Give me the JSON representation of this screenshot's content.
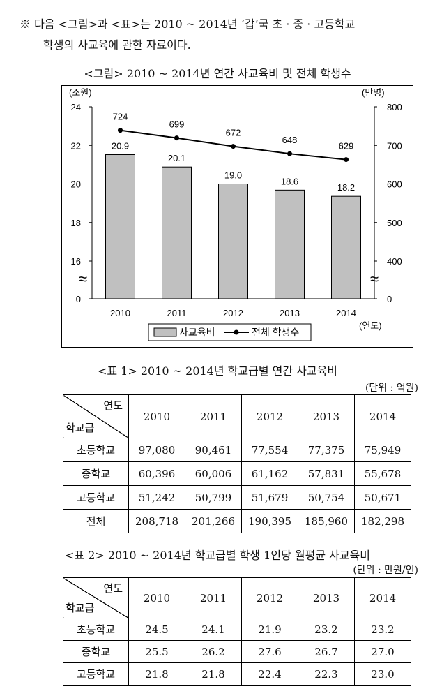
{
  "intro": {
    "line1": "※  다음  <그림>과  <표>는  2010 ~ 2014년  ‘갑’국  초 · 중 · 고등학교",
    "line2": "학생의 사교육에 관한 자료이다."
  },
  "figure": {
    "caption": "<그림> 2010 ~ 2014년 연간 사교육비 및 전체 학생수",
    "left_unit": "(조원)",
    "right_unit": "(만명)",
    "x_unit": "(연도)",
    "break_symbol": "≈",
    "legend": {
      "bar": "사교육비",
      "line": "전체 학생수"
    }
  },
  "chart_data": {
    "type": "bar",
    "categories": [
      "2010",
      "2011",
      "2012",
      "2013",
      "2014"
    ],
    "series": [
      {
        "name": "사교육비",
        "type": "bar",
        "axis": "left",
        "values": [
          20.9,
          20.1,
          19.0,
          18.6,
          18.2
        ]
      },
      {
        "name": "전체 학생수",
        "type": "line",
        "axis": "right",
        "values": [
          724,
          699,
          672,
          648,
          629
        ]
      }
    ],
    "left_axis": {
      "label": "(조원)",
      "ticks": [
        "24",
        "22",
        "20",
        "18",
        "16",
        "0"
      ],
      "ylim": [
        14,
        24
      ],
      "broken": true
    },
    "right_axis": {
      "label": "(만명)",
      "ticks": [
        "800",
        "700",
        "600",
        "500",
        "400",
        "0"
      ],
      "ylim": [
        300,
        800
      ],
      "broken": true
    },
    "xlabel": "(연도)",
    "grid": false,
    "legend_position": "bottom"
  },
  "table1": {
    "caption": "<표 1> 2010 ~ 2014년 학교급별 연간 사교육비",
    "unit": "(단위 : 억원)",
    "header_year": "연도",
    "header_level": "학교급",
    "columns": [
      "2010",
      "2011",
      "2012",
      "2013",
      "2014"
    ],
    "rows": [
      {
        "label": "초등학교",
        "values": [
          "97,080",
          "90,461",
          "77,554",
          "77,375",
          "75,949"
        ]
      },
      {
        "label": "중학교",
        "values": [
          "60,396",
          "60,006",
          "61,162",
          "57,831",
          "55,678"
        ]
      },
      {
        "label": "고등학교",
        "values": [
          "51,242",
          "50,799",
          "51,679",
          "50,754",
          "50,671"
        ]
      },
      {
        "label": "전체",
        "values": [
          "208,718",
          "201,266",
          "190,395",
          "185,960",
          "182,298"
        ]
      }
    ]
  },
  "table2": {
    "caption": "<표 2> 2010 ~ 2014년 학교급별 학생 1인당 월평균 사교육비",
    "unit": "(단위 : 만원/인)",
    "header_year": "연도",
    "header_level": "학교급",
    "columns": [
      "2010",
      "2011",
      "2012",
      "2013",
      "2014"
    ],
    "rows": [
      {
        "label": "초등학교",
        "values": [
          "24.5",
          "24.1",
          "21.9",
          "23.2",
          "23.2"
        ]
      },
      {
        "label": "중학교",
        "values": [
          "25.5",
          "26.2",
          "27.6",
          "26.7",
          "27.0"
        ]
      },
      {
        "label": "고등학교",
        "values": [
          "21.8",
          "21.8",
          "22.4",
          "22.3",
          "23.0"
        ]
      }
    ]
  }
}
